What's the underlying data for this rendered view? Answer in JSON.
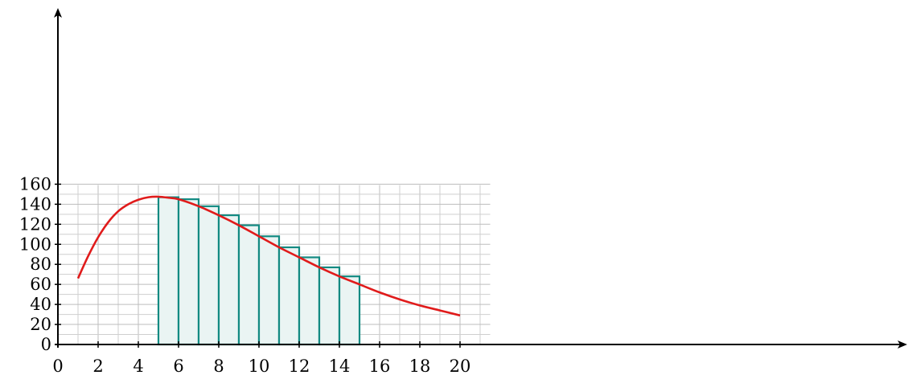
{
  "chart_data": {
    "type": "bar",
    "title": "",
    "xlabel": "",
    "ylabel": "",
    "xlim": [
      0,
      22
    ],
    "ylim": [
      0,
      160
    ],
    "x_ticks": [
      0,
      2,
      4,
      6,
      8,
      10,
      12,
      14,
      16,
      18,
      20
    ],
    "y_ticks": [
      0,
      20,
      40,
      60,
      80,
      100,
      120,
      140,
      160
    ],
    "grid": true,
    "colors": {
      "bar_fill": "#eaf4f3",
      "bar_edge": "#138a82",
      "curve": "#e01b1b"
    },
    "bars": [
      {
        "x0": 5,
        "x1": 6,
        "value": 147
      },
      {
        "x0": 6,
        "x1": 7,
        "value": 145
      },
      {
        "x0": 7,
        "x1": 8,
        "value": 138
      },
      {
        "x0": 8,
        "x1": 9,
        "value": 129
      },
      {
        "x0": 9,
        "x1": 10,
        "value": 119
      },
      {
        "x0": 10,
        "x1": 11,
        "value": 108
      },
      {
        "x0": 11,
        "x1": 12,
        "value": 97
      },
      {
        "x0": 12,
        "x1": 13,
        "value": 87
      },
      {
        "x0": 13,
        "x1": 14,
        "value": 77
      },
      {
        "x0": 14,
        "x1": 15,
        "value": 68
      }
    ],
    "curve": {
      "x": [
        1,
        1.5,
        2,
        2.5,
        3,
        3.5,
        4,
        4.5,
        5,
        5.5,
        6,
        7,
        8,
        9,
        10,
        11,
        12,
        13,
        14,
        15,
        16,
        17,
        18,
        19,
        20
      ],
      "y": [
        66,
        88,
        107,
        122,
        133,
        140,
        144.5,
        147,
        147.5,
        146.5,
        145,
        138,
        129,
        119,
        108,
        97,
        87,
        77,
        68,
        60,
        52,
        45,
        39,
        34,
        29
      ]
    }
  }
}
